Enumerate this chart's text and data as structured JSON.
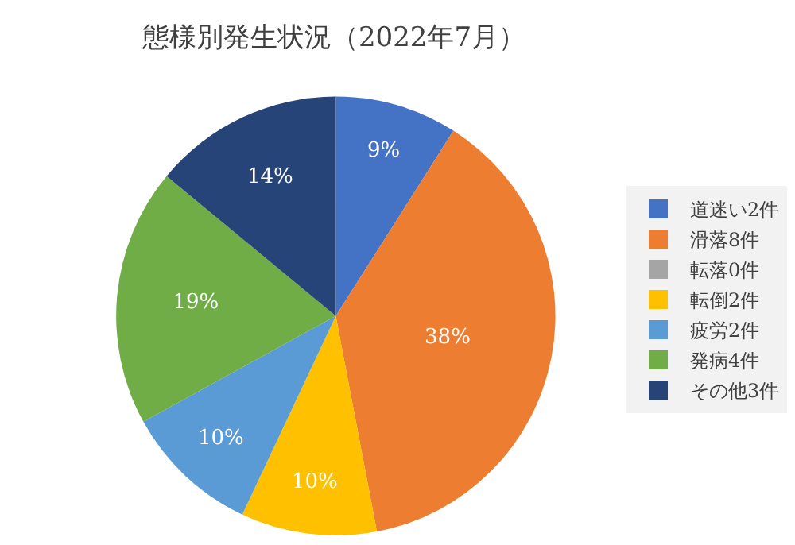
{
  "chart_data": {
    "type": "pie",
    "title": "態様別発生状況（2022年7月）",
    "categories": [
      "道迷い2件",
      "滑落8件",
      "転落0件",
      "転倒2件",
      "疲労2件",
      "発病4件",
      "その他3件"
    ],
    "values": [
      9,
      38,
      0,
      10,
      10,
      19,
      14
    ],
    "value_labels": [
      "9%",
      "38%",
      null,
      "10%",
      "10%",
      "19%",
      "14%"
    ],
    "colors": [
      "#4472c4",
      "#ed7d31",
      "#a5a5a5",
      "#ffc000",
      "#5b9bd5",
      "#70ad47",
      "#264478"
    ],
    "legend": "right"
  }
}
